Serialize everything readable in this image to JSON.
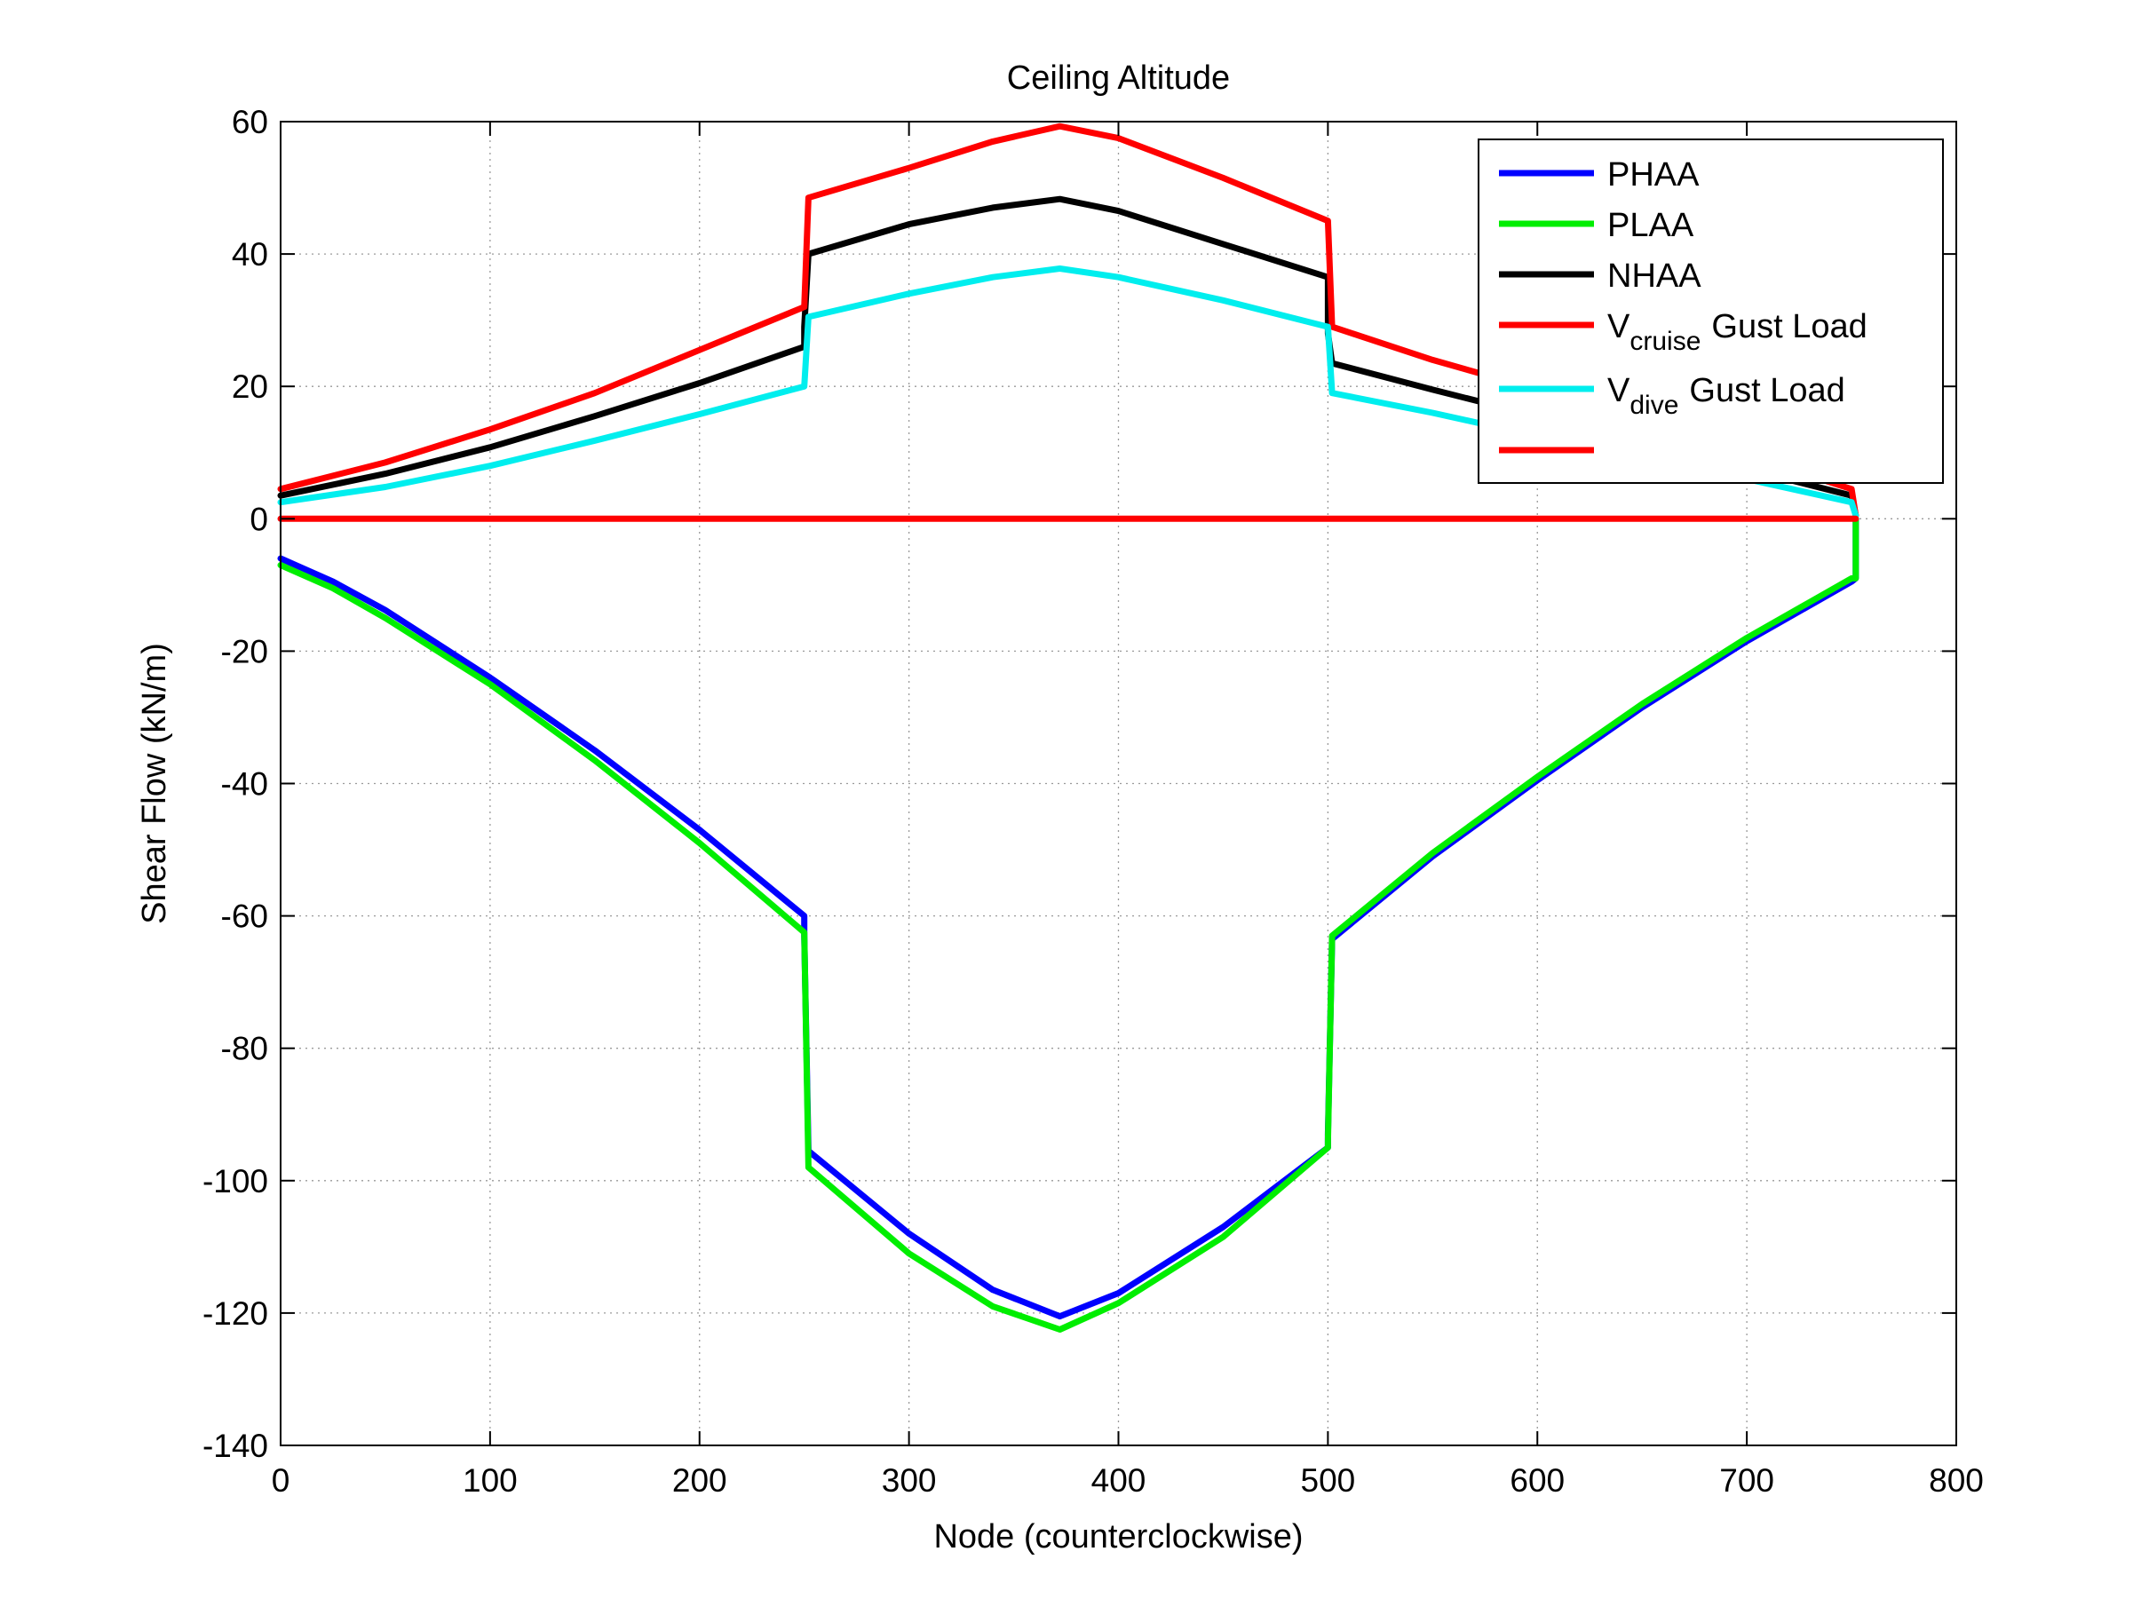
{
  "chart_data": {
    "type": "line",
    "title": "Ceiling Altitude",
    "xlabel": "Node (counterclockwise)",
    "ylabel": "Shear Flow (kN/m)",
    "xlim": [
      0,
      800
    ],
    "ylim": [
      -140,
      60
    ],
    "xticks": [
      0,
      100,
      200,
      300,
      400,
      500,
      600,
      700,
      800
    ],
    "yticks": [
      60,
      40,
      20,
      0,
      -20,
      -40,
      -60,
      -80,
      -100,
      -120,
      -140
    ],
    "xtick_labels": [
      "0",
      "100",
      "200",
      "300",
      "400",
      "500",
      "600",
      "700",
      "800"
    ],
    "ytick_labels": [
      "60",
      "40",
      "20",
      "0",
      "-20",
      "-40",
      "-60",
      "-80",
      "-100",
      "-120",
      "-140"
    ],
    "grid": true,
    "legend_position": "top-right",
    "series": [
      {
        "name": "PHAA",
        "legend_main": "PHAA",
        "legend_sub": "",
        "legend_tail": "",
        "color": "#0000ff",
        "x": [
          0,
          25,
          50,
          100,
          150,
          200,
          250,
          250,
          252,
          300,
          340,
          372,
          400,
          450,
          500,
          500,
          502,
          550,
          600,
          650,
          700,
          750,
          752,
          752
        ],
        "y": [
          -6,
          -9.5,
          -13.8,
          -24,
          -35,
          -47,
          -60,
          -63,
          -95.5,
          -108,
          -116.5,
          -120.5,
          -117,
          -107,
          -95,
          -93,
          -63.5,
          -51,
          -39.5,
          -28.5,
          -18.5,
          -9.5,
          -9,
          0
        ]
      },
      {
        "name": "PLAA",
        "legend_main": "PLAA",
        "legend_sub": "",
        "legend_tail": "",
        "color": "#00ee00",
        "x": [
          0,
          25,
          50,
          100,
          150,
          200,
          250,
          252,
          300,
          340,
          372,
          400,
          450,
          500,
          500,
          502,
          550,
          600,
          650,
          700,
          750,
          752,
          752
        ],
        "y": [
          -7,
          -10.5,
          -15,
          -25,
          -36.5,
          -49,
          -62.5,
          -98,
          -111,
          -119,
          -122.5,
          -118.5,
          -108.5,
          -95,
          -94,
          -63,
          -50.5,
          -39,
          -28,
          -18,
          -9,
          -9,
          0
        ]
      },
      {
        "name": "NHAA",
        "legend_main": "NHAA",
        "legend_sub": "",
        "legend_tail": "",
        "color": "#000000",
        "x": [
          0,
          50,
          100,
          150,
          200,
          250,
          250,
          252,
          300,
          340,
          372,
          400,
          450,
          500,
          500,
          502,
          550,
          600,
          650,
          700,
          750,
          752
        ],
        "y": [
          3.5,
          6.8,
          10.8,
          15.5,
          20.5,
          26,
          29,
          40,
          44.5,
          47,
          48.3,
          46.5,
          41.5,
          36.5,
          28,
          23.5,
          19.5,
          15.5,
          11.5,
          7.5,
          3.5,
          0.5
        ]
      },
      {
        "name": "Vcruise Gust Load",
        "legend_main": "V",
        "legend_sub": "cruise",
        "legend_tail": "Gust Load",
        "color": "#ff0000",
        "x": [
          0,
          50,
          100,
          150,
          200,
          250,
          252,
          300,
          340,
          372,
          400,
          450,
          500,
          502,
          550,
          600,
          650,
          700,
          750,
          752
        ],
        "y": [
          4.5,
          8.5,
          13.5,
          19,
          25.5,
          32,
          48.5,
          53,
          57,
          59.3,
          57.5,
          51.5,
          45,
          29,
          24,
          19.5,
          14.5,
          9.5,
          4.5,
          0.5
        ]
      },
      {
        "name": "Vdive Gust Load",
        "legend_main": "V",
        "legend_sub": "dive",
        "legend_tail": "Gust Load",
        "color": "#00eeee",
        "x": [
          0,
          50,
          100,
          150,
          200,
          250,
          252,
          300,
          340,
          372,
          400,
          450,
          500,
          502,
          550,
          600,
          650,
          700,
          750,
          752
        ],
        "y": [
          2.5,
          4.8,
          8,
          11.8,
          15.8,
          20,
          30.5,
          34,
          36.5,
          37.8,
          36.5,
          33,
          29,
          19,
          16,
          12.5,
          9.5,
          6,
          2.5,
          0.5
        ]
      },
      {
        "name": "",
        "legend_main": "",
        "legend_sub": "",
        "legend_tail": "",
        "color": "#ff0000",
        "x": [
          0,
          752
        ],
        "y": [
          0,
          0
        ]
      }
    ]
  }
}
